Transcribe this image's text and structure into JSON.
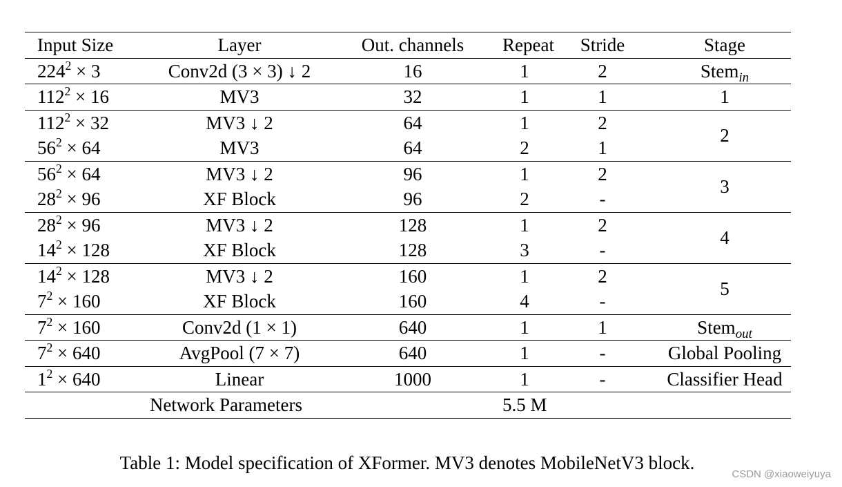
{
  "table": {
    "headers": [
      "Input Size",
      "Layer",
      "Out. channels",
      "Repeat",
      "Stride",
      "Stage"
    ],
    "groups": [
      {
        "stage": "Stem",
        "stage_sub": "in",
        "rows": [
          {
            "size_base": "224",
            "size_exp": "2",
            "size_rest": " × 3",
            "layer": "Conv2d (3 × 3) ↓ 2",
            "channels": "16",
            "repeat": "1",
            "stride": "2"
          }
        ]
      },
      {
        "stage": "1",
        "stage_sub": "",
        "rows": [
          {
            "size_base": "112",
            "size_exp": "2",
            "size_rest": " × 16",
            "layer": "MV3",
            "channels": "32",
            "repeat": "1",
            "stride": "1"
          }
        ]
      },
      {
        "stage": "2",
        "stage_sub": "",
        "rows": [
          {
            "size_base": "112",
            "size_exp": "2",
            "size_rest": " × 32",
            "layer": "MV3 ↓ 2",
            "channels": "64",
            "repeat": "1",
            "stride": "2"
          },
          {
            "size_base": "56",
            "size_exp": "2",
            "size_rest": " × 64",
            "layer": "MV3",
            "channels": "64",
            "repeat": "2",
            "stride": "1"
          }
        ]
      },
      {
        "stage": "3",
        "stage_sub": "",
        "rows": [
          {
            "size_base": "56",
            "size_exp": "2",
            "size_rest": " × 64",
            "layer": "MV3 ↓ 2",
            "channels": "96",
            "repeat": "1",
            "stride": "2"
          },
          {
            "size_base": "28",
            "size_exp": "2",
            "size_rest": " × 96",
            "layer": "XF Block",
            "channels": "96",
            "repeat": "2",
            "stride": "-"
          }
        ]
      },
      {
        "stage": "4",
        "stage_sub": "",
        "rows": [
          {
            "size_base": "28",
            "size_exp": "2",
            "size_rest": " × 96",
            "layer": "MV3 ↓ 2",
            "channels": "128",
            "repeat": "1",
            "stride": "2"
          },
          {
            "size_base": "14",
            "size_exp": "2",
            "size_rest": " × 128",
            "layer": "XF Block",
            "channels": "128",
            "repeat": "3",
            "stride": "-"
          }
        ]
      },
      {
        "stage": "5",
        "stage_sub": "",
        "rows": [
          {
            "size_base": "14",
            "size_exp": "2",
            "size_rest": " × 128",
            "layer": "MV3 ↓ 2",
            "channels": "160",
            "repeat": "1",
            "stride": "2"
          },
          {
            "size_base": "7",
            "size_exp": "2",
            "size_rest": " × 160",
            "layer": "XF Block",
            "channels": "160",
            "repeat": "4",
            "stride": "-"
          }
        ]
      },
      {
        "stage": "Stem",
        "stage_sub": "out",
        "rows": [
          {
            "size_base": "7",
            "size_exp": "2",
            "size_rest": " × 160",
            "layer": "Conv2d (1 × 1)",
            "channels": "640",
            "repeat": "1",
            "stride": "1"
          }
        ]
      },
      {
        "stage": "Global Pooling",
        "stage_sub": "",
        "rows": [
          {
            "size_base": "7",
            "size_exp": "2",
            "size_rest": " × 640",
            "layer": "AvgPool (7 × 7)",
            "channels": "640",
            "repeat": "1",
            "stride": "-"
          }
        ]
      },
      {
        "stage": "Classifier Head",
        "stage_sub": "",
        "rows": [
          {
            "size_base": "1",
            "size_exp": "2",
            "size_rest": " × 640",
            "layer": "Linear",
            "channels": "1000",
            "repeat": "1",
            "stride": "-"
          }
        ]
      }
    ],
    "footer": {
      "label": "Network Parameters",
      "value": "5.5 M"
    }
  },
  "caption": "Table 1: Model specification of XFormer. MV3 denotes MobileNetV3 block.",
  "watermark": "CSDN @xiaoweiyuya"
}
